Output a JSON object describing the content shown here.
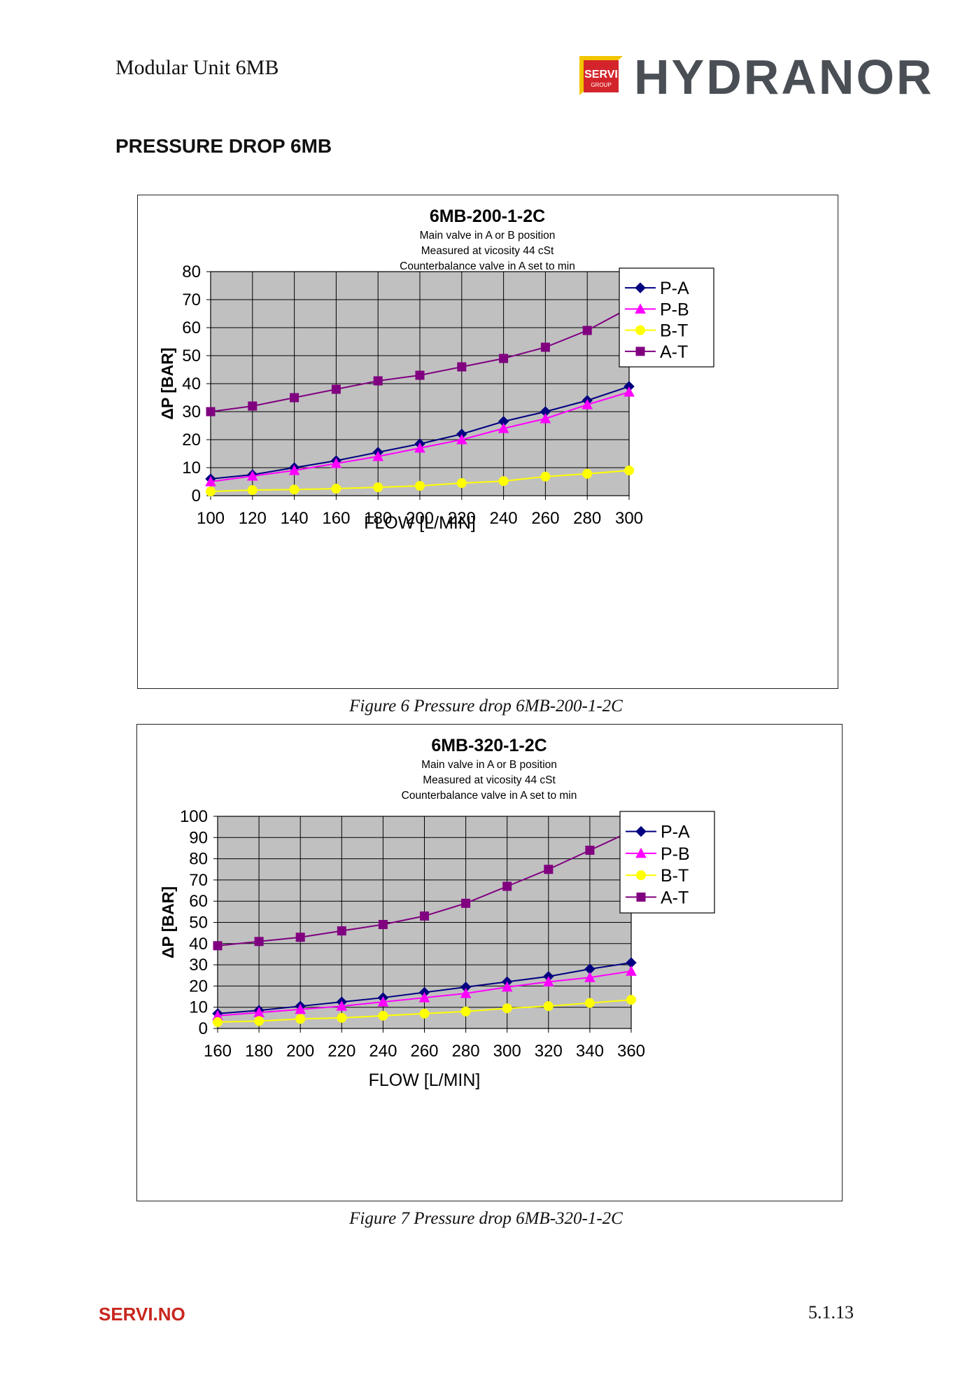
{
  "header": {
    "doc_title": "Modular Unit 6MB",
    "logo_mark_text": [
      "SERVI",
      "GROUP"
    ],
    "brand": "HYDRANOR"
  },
  "section_heading": "PRESSURE DROP 6MB",
  "colors": {
    "P-A": "#000080",
    "P-B": "#ff00ff",
    "B-T": "#ffff00",
    "A-T": "#800080",
    "plot_bg": "#c0c0c0",
    "footer_red": "#c8261e"
  },
  "chart_data": [
    {
      "type": "line",
      "title": "6MB-200-1-2C",
      "subtitle": [
        "Main valve in A or B position",
        "Measured at vicosity 44 cSt",
        "Counterbalance valve in A set to min"
      ],
      "xlabel": "FLOW  [L/MIN]",
      "ylabel": "ΔP [BAR]",
      "x": [
        100,
        120,
        140,
        160,
        180,
        200,
        220,
        240,
        260,
        280,
        300
      ],
      "xlim": [
        100,
        300
      ],
      "ylim": [
        0,
        80
      ],
      "yticks": [
        0,
        10,
        20,
        30,
        40,
        50,
        60,
        70,
        80
      ],
      "grid": true,
      "legend_position": "right",
      "series": [
        {
          "name": "P-A",
          "marker": "diamond",
          "values": [
            6,
            7.5,
            10,
            12.5,
            15.5,
            18.5,
            22,
            26.5,
            30,
            34,
            39
          ]
        },
        {
          "name": "P-B",
          "marker": "triangle",
          "values": [
            5,
            7,
            9,
            11.5,
            14,
            17,
            20,
            24,
            27.5,
            32.5,
            37
          ]
        },
        {
          "name": "B-T",
          "marker": "circle",
          "values": [
            1.5,
            2,
            2.2,
            2.5,
            3,
            3.5,
            4.5,
            5.2,
            6.8,
            7.8,
            9
          ]
        },
        {
          "name": "A-T",
          "marker": "square",
          "values": [
            30,
            32,
            35,
            38,
            41,
            43,
            46,
            49,
            53,
            59,
            67
          ]
        }
      ],
      "caption": "Figure 6 Pressure drop 6MB-200-1-2C"
    },
    {
      "type": "line",
      "title": "6MB-320-1-2C",
      "subtitle": [
        "Main valve in A or B position",
        "Measured at vicosity 44 cSt",
        "Counterbalance valve in A set to min"
      ],
      "xlabel": "FLOW  [L/MIN]",
      "ylabel": "ΔP [BAR]",
      "x": [
        160,
        180,
        200,
        220,
        240,
        260,
        280,
        300,
        320,
        340,
        360
      ],
      "xlim": [
        160,
        360
      ],
      "ylim": [
        0,
        100
      ],
      "yticks": [
        0,
        10,
        20,
        30,
        40,
        50,
        60,
        70,
        80,
        90,
        100
      ],
      "grid": true,
      "legend_position": "right",
      "series": [
        {
          "name": "P-A",
          "marker": "diamond",
          "values": [
            7,
            8.5,
            10.5,
            12.5,
            14.5,
            17,
            19.5,
            22,
            24.5,
            28,
            31
          ]
        },
        {
          "name": "P-B",
          "marker": "triangle",
          "values": [
            6,
            7.5,
            9,
            10.5,
            12.5,
            14.5,
            16.5,
            19.5,
            22,
            24,
            27
          ]
        },
        {
          "name": "B-T",
          "marker": "circle",
          "values": [
            3,
            3.5,
            4.5,
            5,
            6,
            7,
            8,
            9.5,
            10.5,
            12,
            13.5
          ]
        },
        {
          "name": "A-T",
          "marker": "square",
          "values": [
            39,
            41,
            43,
            46,
            49,
            53,
            59,
            67,
            75,
            84,
            93
          ]
        }
      ],
      "caption": "Figure 7 Pressure drop 6MB-320-1-2C"
    }
  ],
  "footer": {
    "left": "SERVI.NO",
    "right": "5.1.13"
  }
}
